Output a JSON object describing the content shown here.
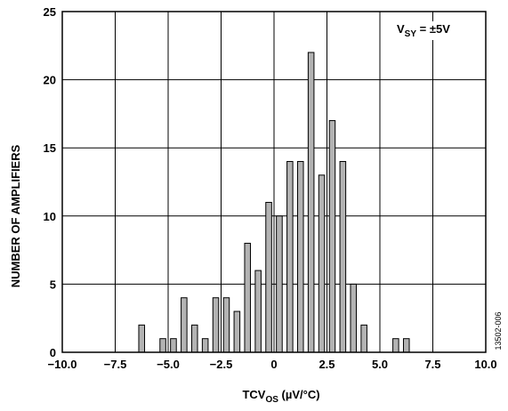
{
  "chart_data": {
    "type": "bar",
    "xlabel_main": "TCV",
    "xlabel_sub": "OS",
    "xlabel_units": " (µV/°C)",
    "ylabel": "NUMBER OF AMPLIFIERS",
    "annotation_main": "V",
    "annotation_sub": "SY",
    "annotation_rest": " = ±5V",
    "figure_id": "13502-006",
    "xlim": [
      -10,
      10
    ],
    "ylim": [
      0,
      25
    ],
    "grid": true,
    "x_ticks": [
      -10,
      -7.5,
      -5,
      -2.5,
      0,
      2.5,
      5,
      7.5,
      10
    ],
    "x_tick_labels": [
      "−10.0",
      "−7.5",
      "−5.0",
      "−2.5",
      "0",
      "2.5",
      "5.0",
      "7.5",
      "10.0"
    ],
    "y_ticks": [
      0,
      5,
      10,
      15,
      20,
      25
    ],
    "y_tick_labels": [
      "0",
      "5",
      "10",
      "15",
      "20",
      "25"
    ],
    "bin_width": 0.5,
    "x": [
      -6.25,
      -5.25,
      -4.75,
      -4.25,
      -3.75,
      -3.25,
      -2.75,
      -2.25,
      -1.75,
      -1.25,
      -0.75,
      -0.25,
      0.25,
      0.75,
      1.25,
      1.75,
      2.25,
      2.75,
      3.25,
      3.75,
      4.25,
      5.75,
      6.25
    ],
    "values": [
      2,
      1,
      1,
      4,
      2,
      1,
      4,
      4,
      3,
      8,
      6,
      11,
      10,
      14,
      14,
      22,
      13,
      17,
      14,
      5,
      2,
      1,
      1
    ],
    "bar_color": "#b3b3b3"
  }
}
